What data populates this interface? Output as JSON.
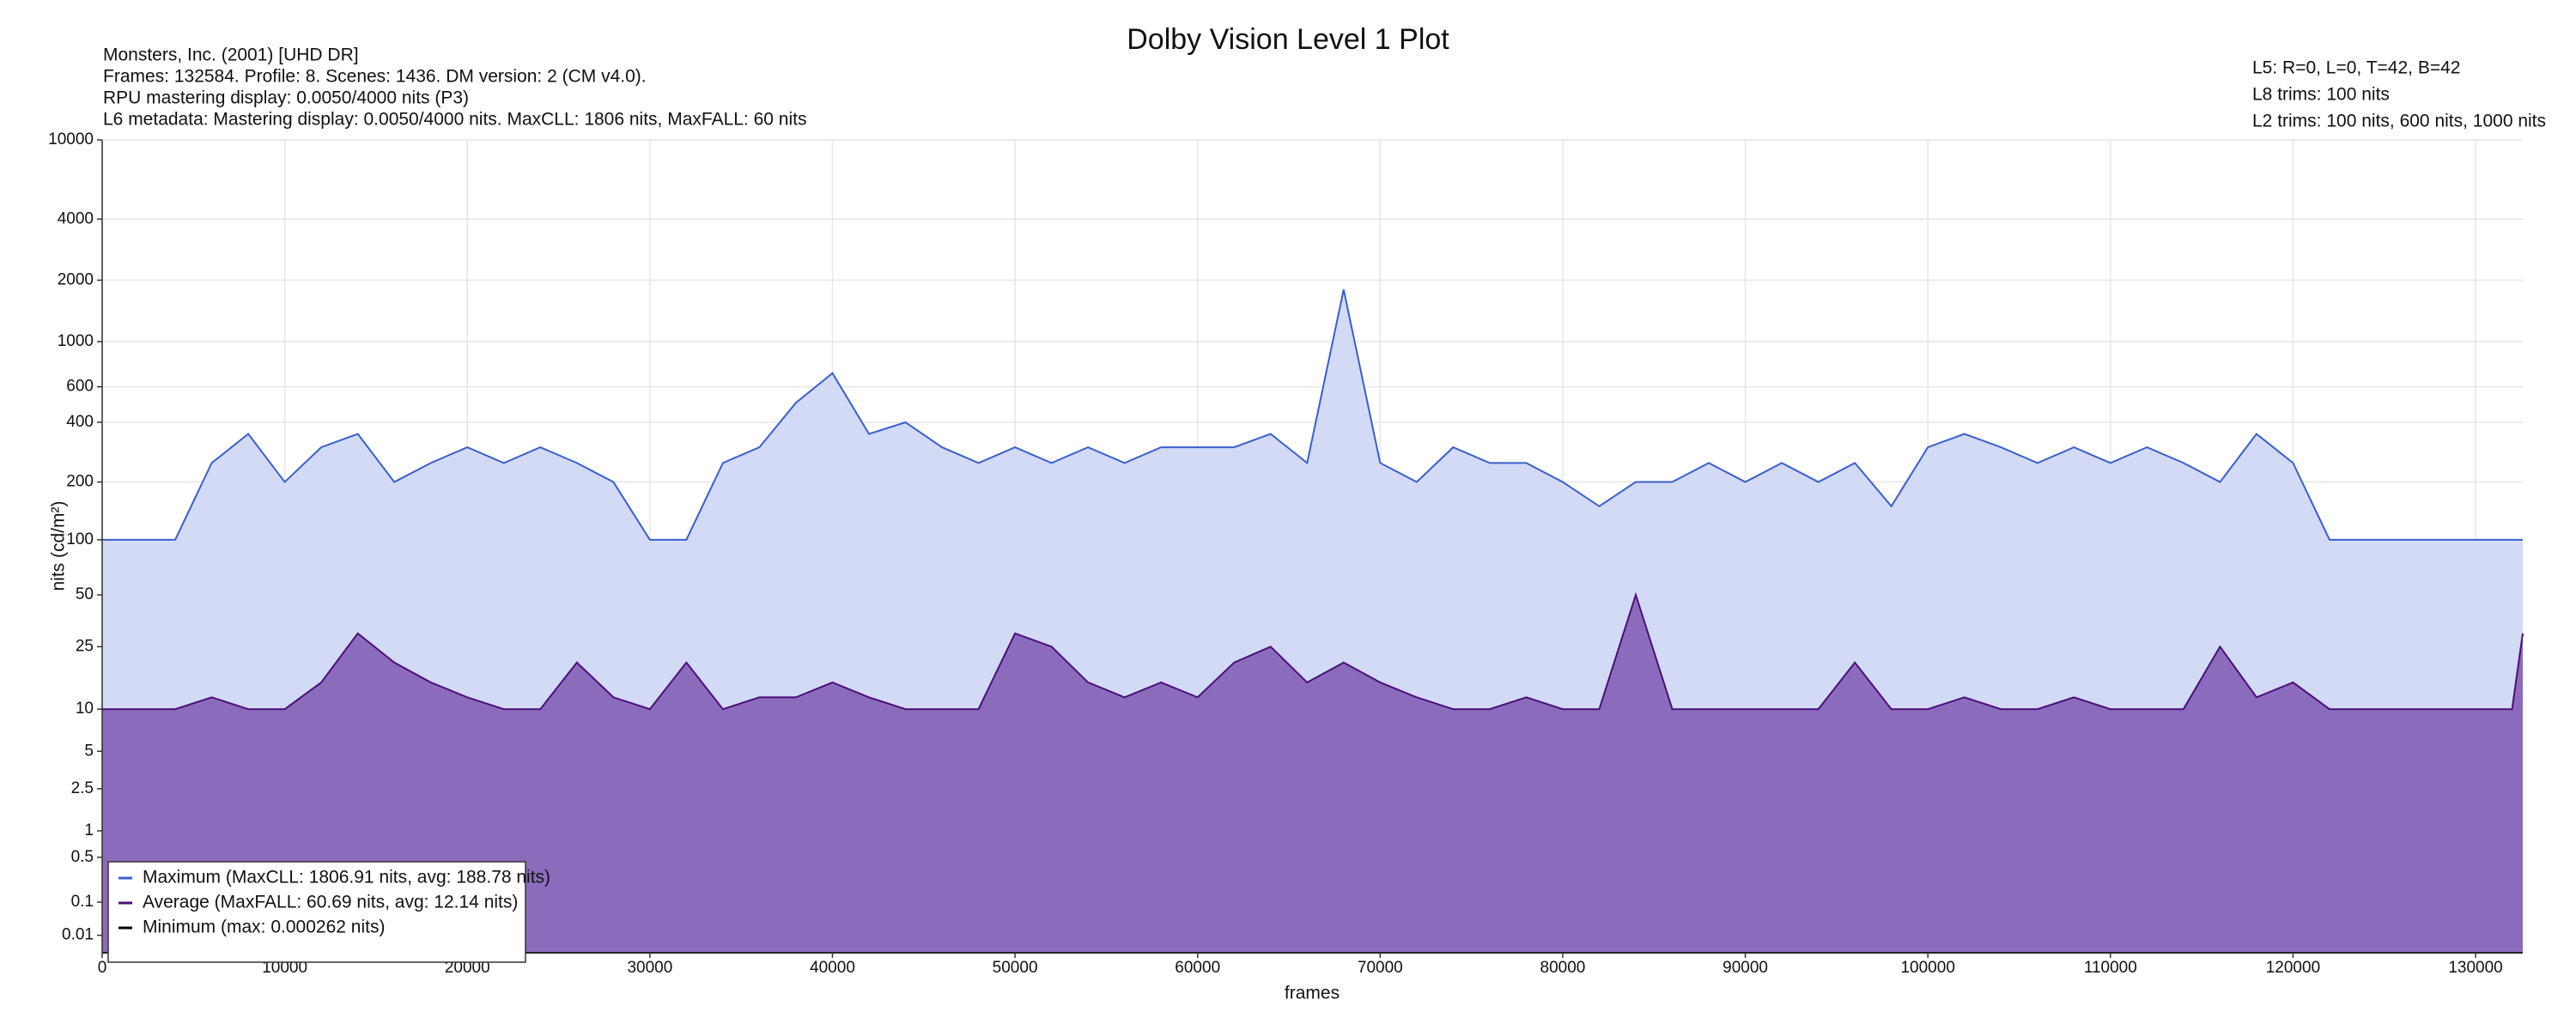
{
  "chart_data": {
    "type": "line",
    "title": "Dolby Vision Level 1 Plot",
    "info_left": [
      "Monsters, Inc. (2001) [UHD DR]",
      "Frames: 132584. Profile: 8. Scenes: 1436. DM version: 2 (CM v4.0).",
      "RPU mastering display: 0.0050/4000 nits  (P3)",
      "L6 metadata: Mastering display: 0.0050/4000 nits. MaxCLL: 1806 nits, MaxFALL: 60 nits"
    ],
    "info_right": [
      "L5: R=0, L=0, T=42, B=42",
      "L8 trims: 100 nits",
      "L2 trims: 100 nits, 600 nits, 1000 nits"
    ],
    "x_label": "frames",
    "y_label": "nits (cd/m²)",
    "yscale": "pq",
    "grid": true,
    "legend": "lower left",
    "xlim": [
      0,
      132584
    ],
    "xticks": [
      0,
      10000,
      20000,
      30000,
      40000,
      50000,
      60000,
      70000,
      80000,
      90000,
      100000,
      110000,
      120000,
      130000
    ],
    "ylim": [
      0,
      10000
    ],
    "yticks": [
      0.01,
      0.1,
      0.5,
      1,
      2.5,
      5,
      10,
      25,
      50,
      100,
      200,
      400,
      600,
      1000,
      2000,
      4000,
      10000
    ],
    "x": [
      0,
      2000,
      4000,
      6000,
      8000,
      10000,
      12000,
      14000,
      16000,
      18000,
      20000,
      22000,
      24000,
      26000,
      28000,
      30000,
      32000,
      34000,
      36000,
      38000,
      40000,
      42000,
      44000,
      46000,
      48000,
      50000,
      52000,
      54000,
      56000,
      58000,
      60000,
      62000,
      64000,
      66000,
      68000,
      70000,
      72000,
      74000,
      76000,
      78000,
      80000,
      82000,
      84000,
      86000,
      88000,
      90000,
      92000,
      94000,
      96000,
      98000,
      100000,
      102000,
      104000,
      106000,
      108000,
      110000,
      112000,
      114000,
      116000,
      118000,
      120000,
      122000,
      124000,
      126000,
      128000,
      130000,
      132000,
      132584
    ],
    "series": [
      {
        "name": "Maximum (MaxCLL: 1806.91 nits, avg: 188.78 nits)",
        "color": "#3a5fcd",
        "fill": "#d2daf6",
        "values": [
          100,
          100,
          100,
          250,
          350,
          200,
          300,
          350,
          200,
          250,
          300,
          250,
          300,
          250,
          200,
          100,
          100,
          250,
          300,
          500,
          700,
          350,
          400,
          300,
          250,
          300,
          250,
          300,
          250,
          300,
          300,
          300,
          350,
          250,
          1800,
          250,
          200,
          300,
          250,
          250,
          200,
          150,
          200,
          200,
          250,
          200,
          250,
          200,
          250,
          150,
          300,
          350,
          300,
          250,
          300,
          250,
          300,
          250,
          200,
          350,
          250,
          100,
          100,
          100,
          100,
          100,
          100,
          100
        ]
      },
      {
        "name": "Average (MaxFALL: 60.69 nits, avg: 12.14 nits)",
        "color": "#4b0f7a",
        "fill": "#8b6cbc",
        "values": [
          10,
          10,
          10,
          12,
          10,
          10,
          15,
          30,
          20,
          15,
          12,
          10,
          10,
          20,
          12,
          10,
          20,
          10,
          12,
          12,
          15,
          12,
          10,
          10,
          10,
          30,
          25,
          15,
          12,
          15,
          12,
          20,
          25,
          15,
          20,
          15,
          12,
          10,
          10,
          12,
          10,
          10,
          50,
          10,
          10,
          10,
          10,
          10,
          20,
          10,
          10,
          12,
          10,
          10,
          12,
          10,
          10,
          10,
          25,
          12,
          15,
          10,
          10,
          10,
          10,
          10,
          10,
          30
        ]
      },
      {
        "name": "Minimum (max: 0.000262 nits)",
        "color": "#000000",
        "values": [
          0,
          0,
          0,
          0,
          0,
          0,
          0,
          0,
          0,
          0,
          0,
          0,
          0,
          0,
          0,
          0,
          0,
          0,
          0,
          0,
          0,
          0,
          0,
          0,
          0,
          0,
          0,
          0,
          0,
          0,
          0,
          0,
          0,
          0,
          0,
          0,
          0,
          0,
          0,
          0,
          0,
          0,
          0,
          0,
          0,
          0,
          0,
          0,
          0,
          0,
          0,
          0,
          0,
          0,
          0,
          0,
          0,
          0,
          0,
          0,
          0,
          0,
          0,
          0,
          0,
          0,
          0,
          0
        ]
      }
    ]
  }
}
